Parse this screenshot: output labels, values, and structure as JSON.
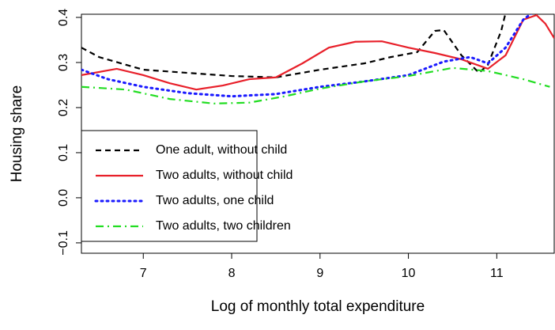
{
  "chart_data": {
    "type": "line",
    "xlabel": "Log of monthly total expenditure",
    "ylabel": "Housing share",
    "xlim": [
      6.3,
      11.65
    ],
    "ylim": [
      -0.123,
      0.407
    ],
    "xticks": [
      7,
      8,
      9,
      10,
      11
    ],
    "yticks": [
      {
        "value": -0.1,
        "label": "−0.1"
      },
      {
        "value": 0,
        "label": "0.0"
      },
      0.1,
      0.2,
      0.3,
      0.4
    ],
    "legend": "bottom-left",
    "series": [
      {
        "name": "One adult, without child",
        "color": "#000000",
        "linestyle": "dashed",
        "x": [
          6.3,
          6.5,
          7.0,
          7.5,
          8.0,
          8.5,
          9.0,
          9.5,
          9.8,
          10.1,
          10.3,
          10.4,
          10.6,
          10.8,
          10.9,
          11.05,
          11.15
        ],
        "values": [
          0.333,
          0.312,
          0.284,
          0.277,
          0.27,
          0.267,
          0.284,
          0.298,
          0.312,
          0.323,
          0.37,
          0.372,
          0.316,
          0.277,
          0.295,
          0.37,
          0.45
        ]
      },
      {
        "name": "Two adults, without child",
        "color": "#e8202a",
        "linestyle": "solid",
        "x": [
          6.3,
          6.7,
          7.0,
          7.3,
          7.6,
          7.9,
          8.2,
          8.5,
          8.8,
          9.1,
          9.4,
          9.7,
          10.0,
          10.3,
          10.6,
          10.9,
          11.1,
          11.3,
          11.45,
          11.55,
          11.65
        ],
        "values": [
          0.272,
          0.286,
          0.272,
          0.254,
          0.24,
          0.249,
          0.263,
          0.267,
          0.298,
          0.333,
          0.346,
          0.347,
          0.333,
          0.321,
          0.307,
          0.286,
          0.316,
          0.395,
          0.405,
          0.386,
          0.354
        ]
      },
      {
        "name": "Two adults, one child",
        "color": "#1a1aff",
        "linestyle": "dotted",
        "x": [
          6.3,
          6.6,
          7.0,
          7.5,
          8.0,
          8.5,
          9.0,
          9.5,
          10.0,
          10.4,
          10.7,
          10.9,
          11.1,
          11.3,
          11.4
        ],
        "values": [
          0.284,
          0.263,
          0.246,
          0.232,
          0.225,
          0.23,
          0.246,
          0.258,
          0.272,
          0.302,
          0.312,
          0.298,
          0.333,
          0.395,
          0.41
        ]
      },
      {
        "name": "Two adults, two children",
        "color": "#22dd22",
        "linestyle": "dashdot",
        "x": [
          6.3,
          6.8,
          7.3,
          7.8,
          8.2,
          8.6,
          9.0,
          9.5,
          10.0,
          10.5,
          10.9,
          11.3,
          11.6
        ],
        "values": [
          0.246,
          0.24,
          0.219,
          0.209,
          0.211,
          0.225,
          0.242,
          0.258,
          0.27,
          0.288,
          0.281,
          0.263,
          0.246
        ]
      }
    ]
  }
}
